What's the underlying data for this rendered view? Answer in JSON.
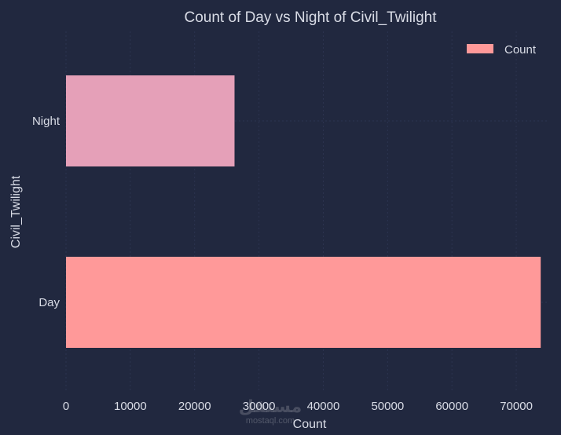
{
  "chart_data": {
    "type": "bar",
    "orientation": "horizontal",
    "title": "Count of Day vs Night of Civil_Twilight",
    "xlabel": "Count",
    "ylabel": "Civil_Twilight",
    "categories": [
      "Night",
      "Day"
    ],
    "series": [
      {
        "name": "Count",
        "values": [
          26200,
          73800
        ],
        "colors": [
          "#e5a0b8",
          "#ff9999"
        ]
      }
    ],
    "xlim": [
      0,
      75000
    ],
    "xticks": [
      0,
      10000,
      20000,
      30000,
      40000,
      50000,
      60000,
      70000
    ],
    "grid": true,
    "legend": {
      "position": "top-right",
      "entries": [
        "Count"
      ],
      "swatch_color": "#ff9999"
    },
    "background": "#21283f"
  },
  "watermark": {
    "text": "مستقل",
    "sub": "mostaql.com"
  }
}
